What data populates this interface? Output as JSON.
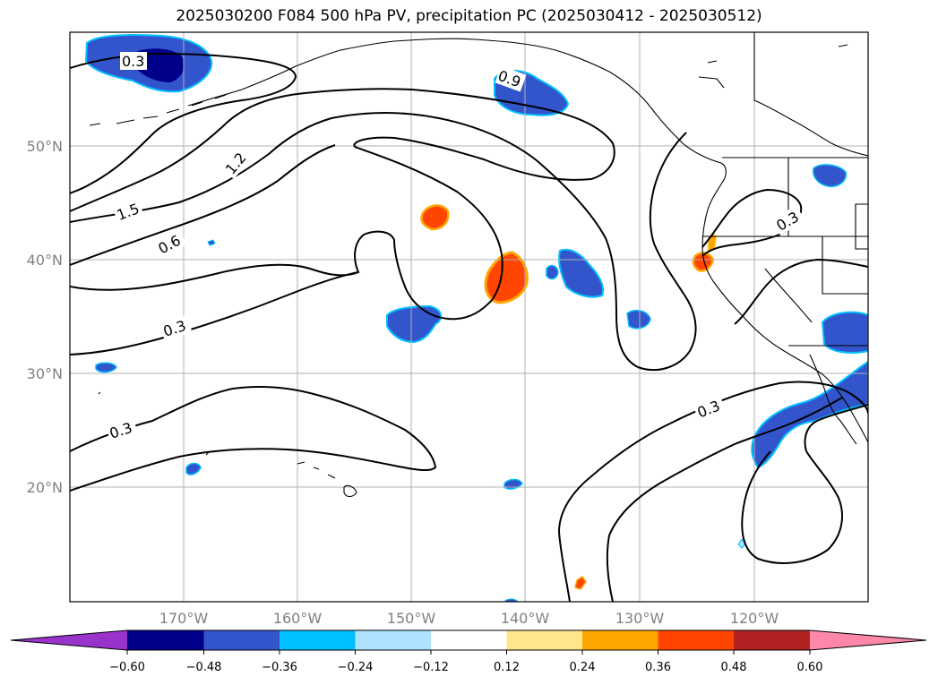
{
  "title": "2025030200 F084 500 hPa PV, precipitation PC (2025030412 - 2025030512)",
  "lat_ticks": [
    "50°N",
    "40°N",
    "30°N",
    "20°N"
  ],
  "lon_ticks": [
    "170°W",
    "160°W",
    "150°W",
    "140°W",
    "130°W",
    "120°W"
  ],
  "contour_labels": [
    "0.3",
    "0.9",
    "1.2",
    "1.5",
    "0.6",
    "0.3",
    "0.3",
    "0.3",
    "0.3"
  ],
  "colorbar": {
    "ticks": [
      "−0.60",
      "−0.48",
      "−0.36",
      "−0.24",
      "−0.12",
      "0.12",
      "0.24",
      "0.36",
      "0.48",
      "0.60"
    ],
    "colors": [
      "#9933cc",
      "#00008b",
      "#3355cc",
      "#00bfff",
      "#aee2ff",
      "#ffffff",
      "#ffe68c",
      "#ffa500",
      "#ff4500",
      "#b22222",
      "#ff88aa"
    ]
  },
  "colors": {
    "frame": "#000000",
    "grid": "#b0b0b0",
    "tick_text": "#808080"
  }
}
